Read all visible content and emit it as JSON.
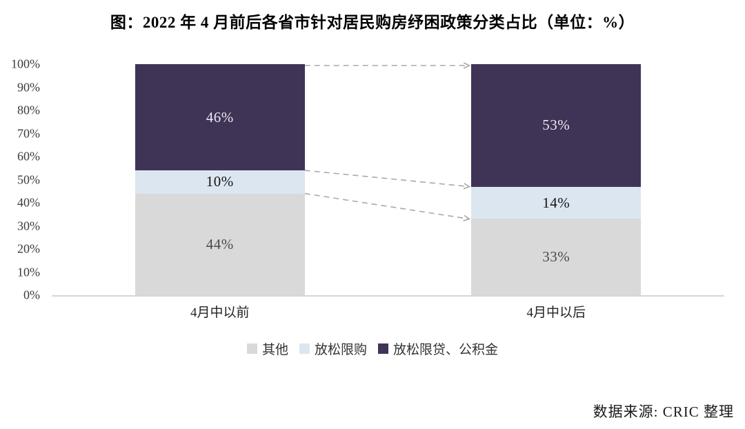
{
  "title": "图：2022 年 4 月前后各省市针对居民购房纾困政策分类占比（单位：%）",
  "source": "数据来源: CRIC 整理",
  "chart_data": {
    "type": "bar",
    "stacked": true,
    "percent_stacked": true,
    "title": "图：2022 年 4 月前后各省市针对居民购房纾困政策分类占比（单位：%）",
    "unit": "%",
    "categories": [
      "4月中以前",
      "4月中以后"
    ],
    "series": [
      {
        "name": "其他",
        "color": "#d9d9d9",
        "label_color": "#4a4a4a",
        "values": [
          44,
          33
        ]
      },
      {
        "name": "放松限购",
        "color": "#dce6f1",
        "label_color": "#141414",
        "values": [
          10,
          14
        ]
      },
      {
        "name": "放松限贷、公积金",
        "color": "#403456",
        "label_color": "#ece8f3",
        "values": [
          46,
          53
        ]
      }
    ],
    "data_labels": [
      [
        "44%",
        "10%",
        "46%"
      ],
      [
        "33%",
        "14%",
        "53%"
      ]
    ],
    "ylim": [
      0,
      100
    ],
    "yticks": [
      "0%",
      "10%",
      "20%",
      "30%",
      "40%",
      "50%",
      "60%",
      "70%",
      "80%",
      "90%",
      "100%"
    ],
    "grid": false,
    "legend_position": "bottom",
    "annotations": "dashed gray arrows link each segment boundary of the left bar to the matching boundary of the right bar",
    "arrow_color": "#a9a9a9",
    "axis_line_color": "#d6d6d6"
  }
}
